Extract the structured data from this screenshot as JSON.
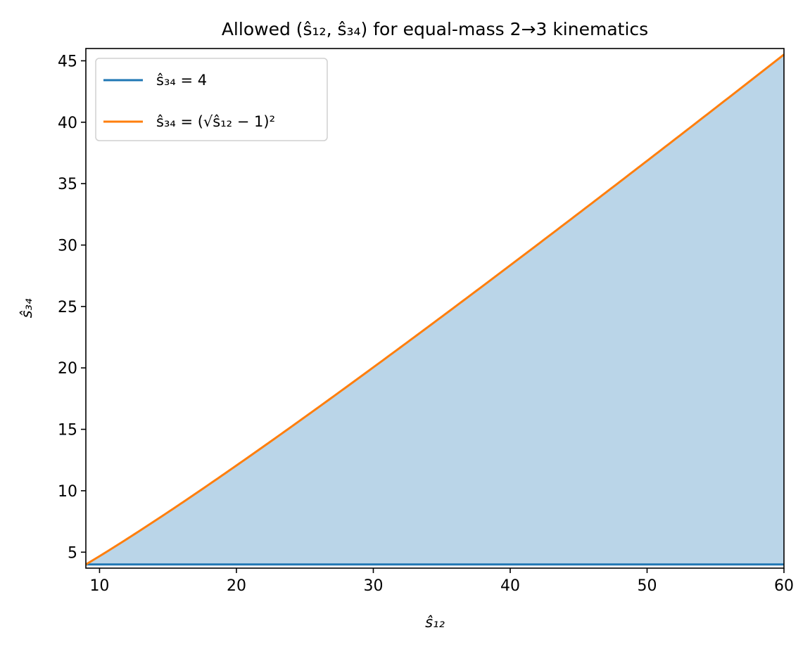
{
  "chart_data": {
    "type": "area",
    "title": "Allowed (ŝ₁₂, ŝ₃₄) for equal-mass 2→3 kinematics",
    "xlabel": "ŝ₁₂",
    "ylabel": "ŝ₃₄",
    "xlim": [
      9,
      60
    ],
    "ylim": [
      3.7,
      46.0
    ],
    "xticks": [
      10,
      20,
      30,
      40,
      50,
      60
    ],
    "yticks": [
      5,
      10,
      15,
      20,
      25,
      30,
      35,
      40,
      45
    ],
    "grid": false,
    "legend_placement": "top-left",
    "series": [
      {
        "name": "ŝ₃₄ = 4",
        "color": "#1f77b4",
        "kind": "constant",
        "value": 4
      },
      {
        "name": "ŝ₃₄ = (√ŝ₁₂ − 1)²",
        "color": "#ff7f0e",
        "kind": "function",
        "formula": "(sqrt(x)-1)^2",
        "x": [
          9,
          15,
          20,
          25,
          30,
          35,
          40,
          45,
          50,
          55,
          60
        ],
        "values": [
          4.0,
          8.25,
          12.06,
          16.0,
          20.05,
          24.17,
          28.35,
          32.58,
          36.86,
          41.17,
          45.51
        ]
      }
    ],
    "fill": {
      "between": [
        "ŝ₃₄ = 4",
        "ŝ₃₄ = (√ŝ₁₂ − 1)²"
      ],
      "color": "#bad5e8"
    }
  }
}
